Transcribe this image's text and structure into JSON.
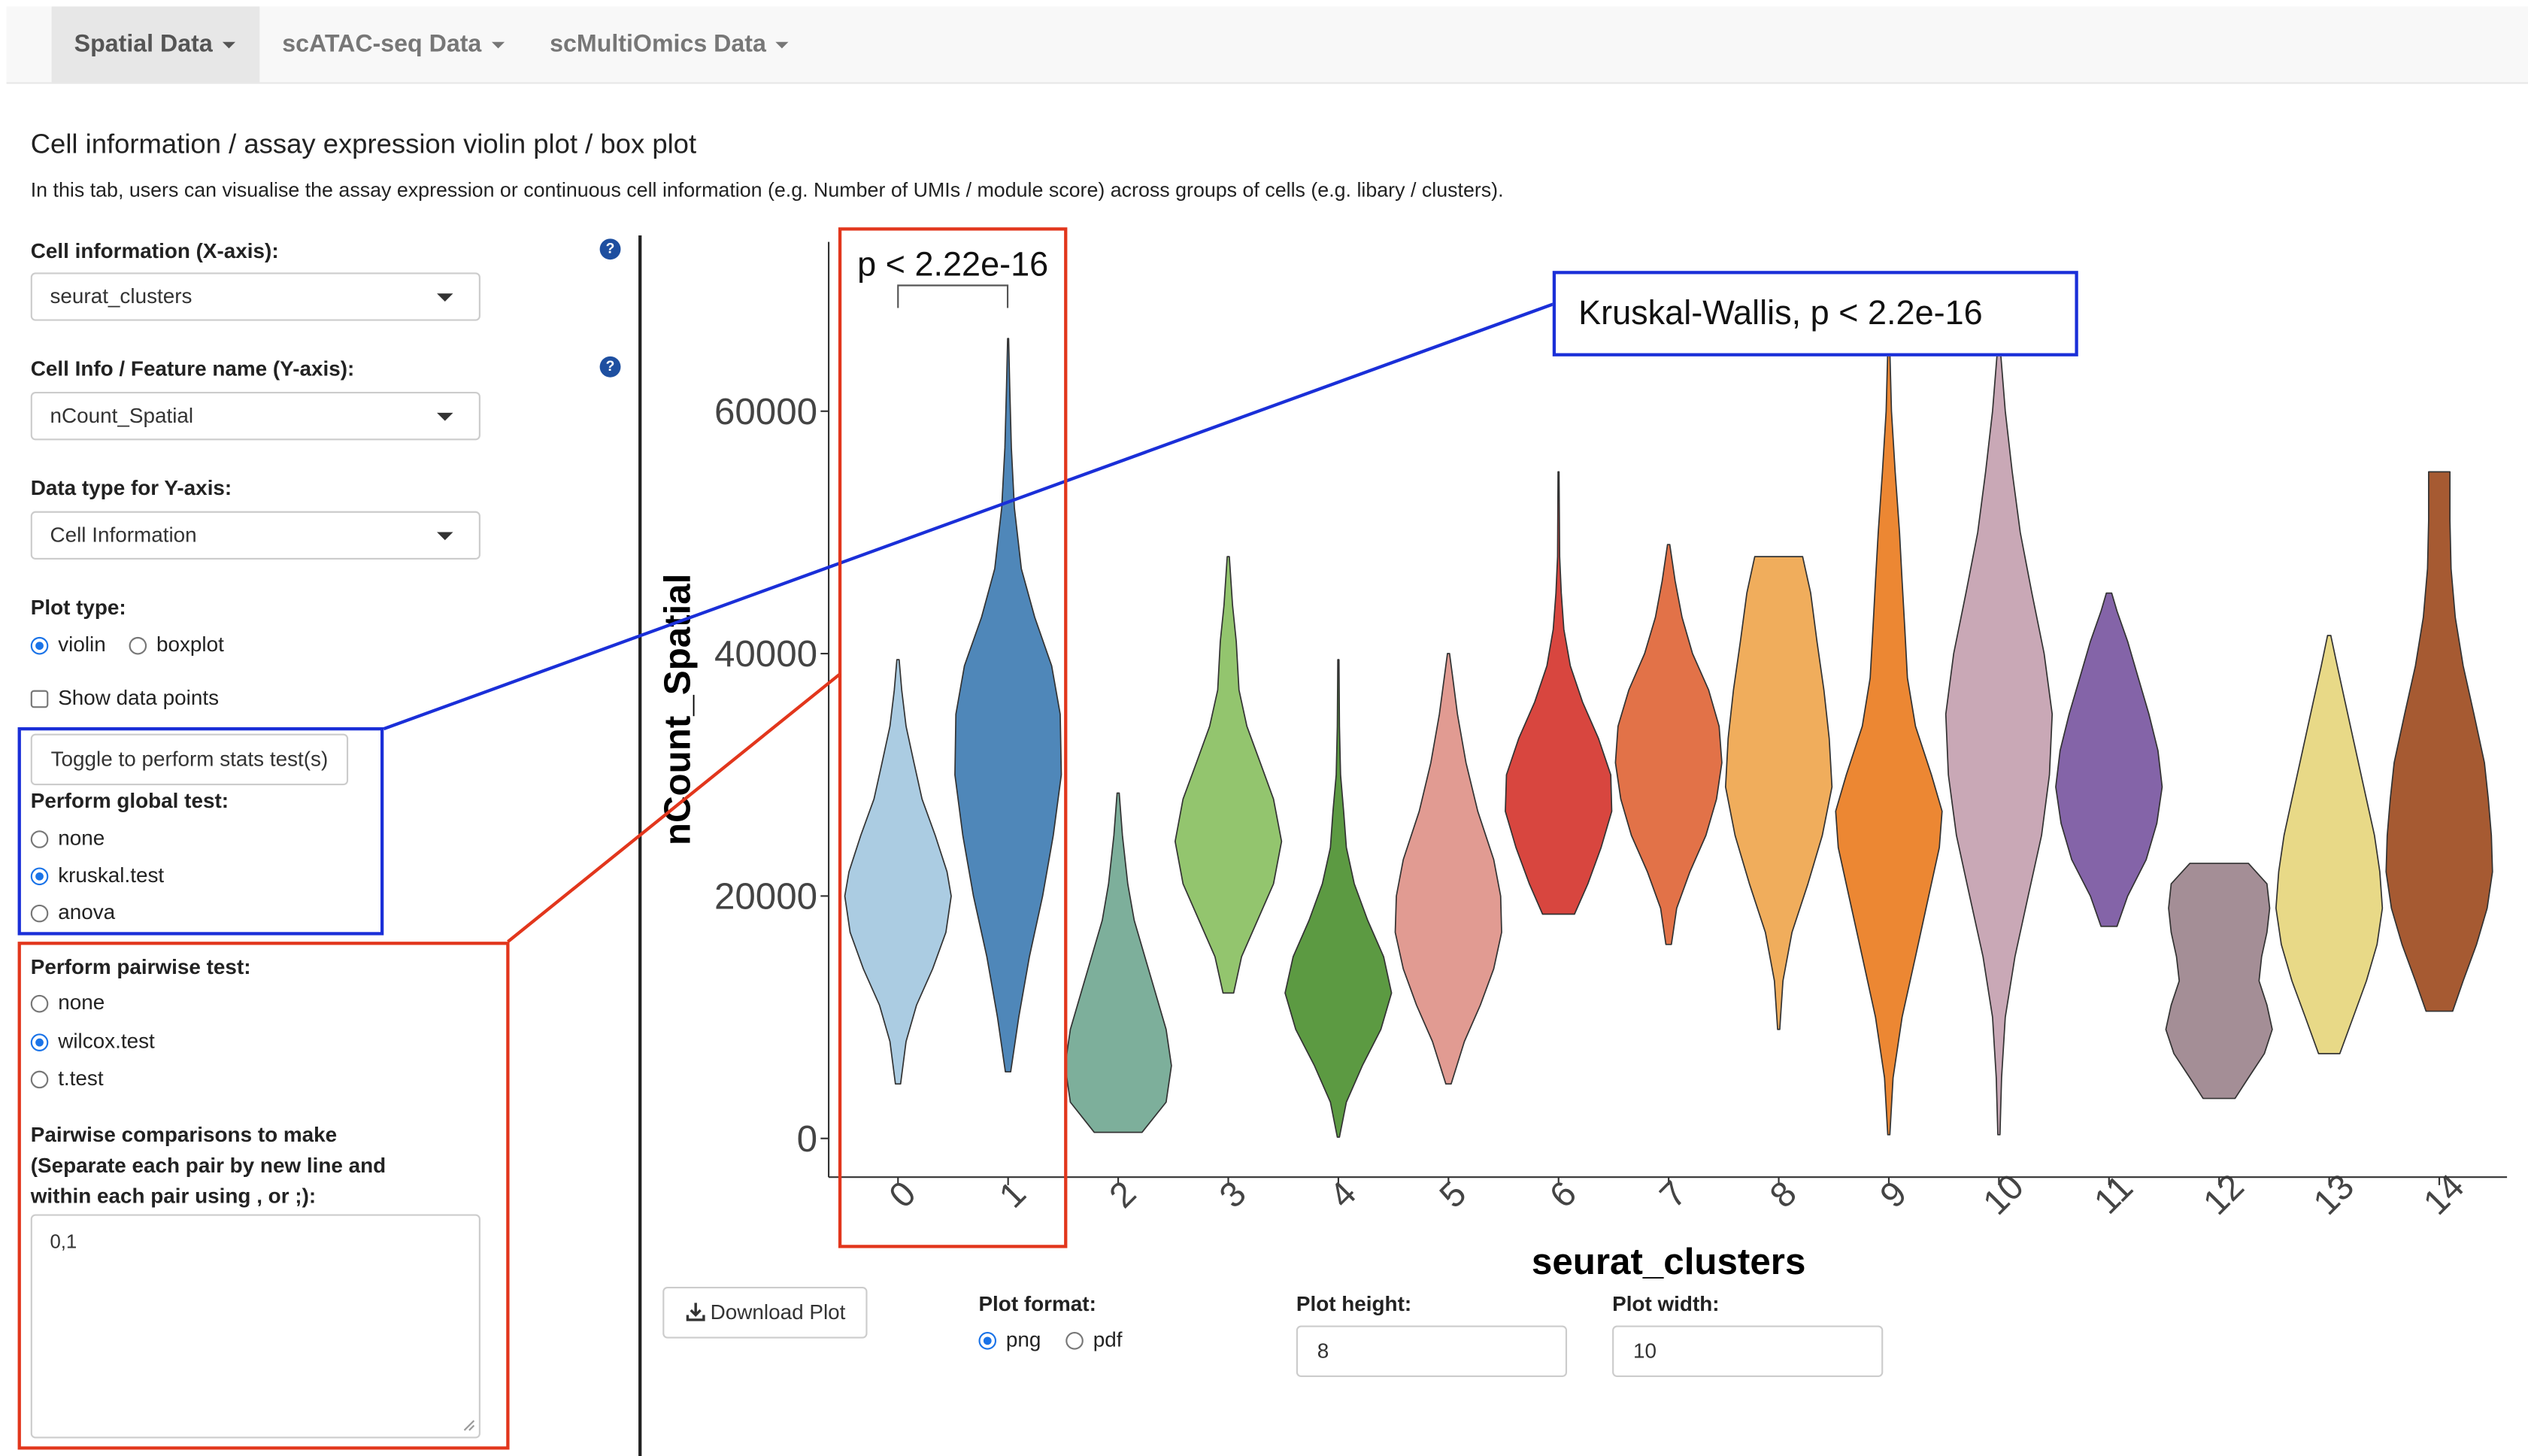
{
  "nav": {
    "tabs": [
      {
        "label": "Spatial Data",
        "active": true
      },
      {
        "label": "scATAC-seq Data",
        "active": false
      },
      {
        "label": "scMultiOmics Data",
        "active": false
      }
    ]
  },
  "header": {
    "title": "Cell information / assay expression violin plot / box plot",
    "description": "In this tab, users can visualise the assay expression or continuous cell information (e.g. Number of UMIs / module score) across groups of cells (e.g. libary / clusters)."
  },
  "controls": {
    "x_axis": {
      "label": "Cell information (X-axis):",
      "value": "seurat_clusters"
    },
    "y_axis": {
      "label": "Cell Info / Feature name (Y-axis):",
      "value": "nCount_Spatial"
    },
    "data_type": {
      "label": "Data type for Y-axis:",
      "value": "Cell Information"
    },
    "plot_type": {
      "label": "Plot type:",
      "options": [
        "violin",
        "boxplot"
      ],
      "selected": "violin"
    },
    "show_points": {
      "label": "Show data points",
      "checked": false
    },
    "stats_toggle": {
      "label": "Toggle to perform stats test(s)"
    },
    "global_test": {
      "label": "Perform global test:",
      "options": [
        "none",
        "kruskal.test",
        "anova"
      ],
      "selected": "kruskal.test"
    },
    "pairwise_test": {
      "label": "Perform pairwise test:",
      "options": [
        "none",
        "wilcox.test",
        "t.test"
      ],
      "selected": "wilcox.test"
    },
    "comparisons": {
      "label_line1": "Pairwise comparisons to make",
      "label_line2": "(Separate each pair by new line and",
      "label_line3": "within each pair using , or ;):",
      "value": "0,1"
    }
  },
  "download": {
    "button_label": "Download Plot",
    "format": {
      "label": "Plot format:",
      "options": [
        "png",
        "pdf"
      ],
      "selected": "png"
    },
    "height": {
      "label": "Plot height:",
      "value": "8"
    },
    "width": {
      "label": "Plot width:",
      "value": "10"
    }
  },
  "icons": {
    "help": "question-circle-icon",
    "download": "download-icon"
  },
  "annotations": {
    "global_label": "Kruskal-Wallis, p < 2.2e-16",
    "pairwise_label": "p < 2.22e-16",
    "blue_color": "#1a2fd8",
    "red_color": "#e2361c"
  },
  "chart_data": {
    "type": "violin",
    "xlabel": "seurat_clusters",
    "ylabel": "nCount_Spatial",
    "ylim": [
      -3000,
      74000
    ],
    "yticks": [
      0,
      20000,
      40000,
      60000
    ],
    "ytick_labels": [
      "0",
      "20000",
      "40000",
      "60000"
    ],
    "categories": [
      "0",
      "1",
      "2",
      "3",
      "4",
      "5",
      "6",
      "7",
      "8",
      "9",
      "10",
      "11",
      "12",
      "13",
      "14"
    ],
    "colors": [
      "#abcce2",
      "#4f87b9",
      "#7daf9b",
      "#93c56e",
      "#5c9a42",
      "#e19b92",
      "#d8463f",
      "#e27248",
      "#f0ad5c",
      "#ec8733",
      "#c9a8b6",
      "#8464a8",
      "#a48e96",
      "#e8d987",
      "#a65a32"
    ],
    "series": [
      {
        "values": [
          [
            4500,
            0.05
          ],
          [
            8000,
            0.15
          ],
          [
            11000,
            0.35
          ],
          [
            14000,
            0.65
          ],
          [
            17000,
            0.9
          ],
          [
            20000,
            1
          ],
          [
            22000,
            0.92
          ],
          [
            25000,
            0.7
          ],
          [
            28000,
            0.45
          ],
          [
            31000,
            0.3
          ],
          [
            34000,
            0.15
          ],
          [
            37000,
            0.07
          ],
          [
            39500,
            0.02
          ]
        ],
        "median": 20000
      },
      {
        "values": [
          [
            5500,
            0.05
          ],
          [
            10000,
            0.2
          ],
          [
            15000,
            0.4
          ],
          [
            20000,
            0.65
          ],
          [
            25000,
            0.85
          ],
          [
            30000,
            1
          ],
          [
            35000,
            0.98
          ],
          [
            39000,
            0.82
          ],
          [
            43000,
            0.5
          ],
          [
            47000,
            0.25
          ],
          [
            52000,
            0.12
          ],
          [
            57000,
            0.06
          ],
          [
            62000,
            0.03
          ],
          [
            66000,
            0.01
          ]
        ],
        "median": 30000
      },
      {
        "values": [
          [
            500,
            0.45
          ],
          [
            3000,
            0.9
          ],
          [
            6000,
            1
          ],
          [
            9000,
            0.9
          ],
          [
            12000,
            0.7
          ],
          [
            15000,
            0.5
          ],
          [
            18000,
            0.3
          ],
          [
            21000,
            0.18
          ],
          [
            25000,
            0.08
          ],
          [
            28500,
            0.02
          ]
        ],
        "median": 8000
      },
      {
        "values": [
          [
            12000,
            0.1
          ],
          [
            15000,
            0.25
          ],
          [
            18000,
            0.55
          ],
          [
            21000,
            0.85
          ],
          [
            24500,
            1
          ],
          [
            28000,
            0.85
          ],
          [
            31000,
            0.6
          ],
          [
            34000,
            0.35
          ],
          [
            37000,
            0.2
          ],
          [
            41000,
            0.15
          ],
          [
            44000,
            0.08
          ],
          [
            48000,
            0.02
          ]
        ],
        "median": 25000
      },
      {
        "values": [
          [
            100,
            0.02
          ],
          [
            3000,
            0.15
          ],
          [
            6000,
            0.45
          ],
          [
            9000,
            0.8
          ],
          [
            12000,
            1
          ],
          [
            15000,
            0.85
          ],
          [
            18000,
            0.55
          ],
          [
            21000,
            0.3
          ],
          [
            24000,
            0.15
          ],
          [
            27000,
            0.1
          ],
          [
            30000,
            0.04
          ],
          [
            34000,
            0.02
          ],
          [
            39500,
            0.01
          ]
        ],
        "median": 12000
      },
      {
        "values": [
          [
            4500,
            0.05
          ],
          [
            8000,
            0.3
          ],
          [
            11000,
            0.6
          ],
          [
            14000,
            0.85
          ],
          [
            17000,
            1
          ],
          [
            20000,
            0.98
          ],
          [
            23000,
            0.85
          ],
          [
            27000,
            0.55
          ],
          [
            31000,
            0.33
          ],
          [
            35000,
            0.17
          ],
          [
            38000,
            0.08
          ],
          [
            40000,
            0.02
          ]
        ],
        "median": 18000
      },
      {
        "values": [
          [
            18500,
            0.3
          ],
          [
            21000,
            0.55
          ],
          [
            24000,
            0.8
          ],
          [
            27000,
            1
          ],
          [
            30000,
            0.98
          ],
          [
            33000,
            0.75
          ],
          [
            36000,
            0.45
          ],
          [
            39000,
            0.22
          ],
          [
            42000,
            0.1
          ],
          [
            45000,
            0.05
          ],
          [
            48000,
            0.02
          ],
          [
            55000,
            0.01
          ]
        ],
        "median": 28000
      },
      {
        "values": [
          [
            16000,
            0.05
          ],
          [
            19000,
            0.15
          ],
          [
            22000,
            0.4
          ],
          [
            25000,
            0.7
          ],
          [
            28000,
            0.9
          ],
          [
            31000,
            1
          ],
          [
            34000,
            0.95
          ],
          [
            37000,
            0.75
          ],
          [
            40000,
            0.45
          ],
          [
            43000,
            0.25
          ],
          [
            46000,
            0.12
          ],
          [
            49000,
            0.02
          ]
        ],
        "median": 31000
      },
      {
        "values": [
          [
            9000,
            0.02
          ],
          [
            13000,
            0.08
          ],
          [
            17000,
            0.25
          ],
          [
            21000,
            0.55
          ],
          [
            25000,
            0.82
          ],
          [
            29000,
            1
          ],
          [
            33000,
            0.95
          ],
          [
            37000,
            0.85
          ],
          [
            41000,
            0.72
          ],
          [
            45000,
            0.6
          ],
          [
            48000,
            0.45
          ]
        ],
        "median": 30000
      },
      {
        "values": [
          [
            300,
            0.02
          ],
          [
            5000,
            0.08
          ],
          [
            10000,
            0.25
          ],
          [
            15000,
            0.5
          ],
          [
            20000,
            0.75
          ],
          [
            24000,
            0.95
          ],
          [
            27000,
            1
          ],
          [
            30000,
            0.8
          ],
          [
            34000,
            0.5
          ],
          [
            38000,
            0.35
          ],
          [
            42000,
            0.3
          ],
          [
            46000,
            0.25
          ],
          [
            50000,
            0.2
          ],
          [
            55000,
            0.12
          ],
          [
            60000,
            0.05
          ],
          [
            65000,
            0.02
          ],
          [
            67000,
            0.01
          ]
        ],
        "median": 27000
      },
      {
        "values": [
          [
            300,
            0.02
          ],
          [
            5000,
            0.05
          ],
          [
            10000,
            0.12
          ],
          [
            15000,
            0.3
          ],
          [
            20000,
            0.55
          ],
          [
            25000,
            0.8
          ],
          [
            30000,
            0.95
          ],
          [
            35000,
            1
          ],
          [
            40000,
            0.85
          ],
          [
            45000,
            0.62
          ],
          [
            50000,
            0.4
          ],
          [
            55000,
            0.25
          ],
          [
            60000,
            0.12
          ],
          [
            65500,
            0.02
          ]
        ],
        "median": 32000
      },
      {
        "values": [
          [
            17500,
            0.15
          ],
          [
            20000,
            0.35
          ],
          [
            23000,
            0.7
          ],
          [
            26000,
            0.9
          ],
          [
            29000,
            1
          ],
          [
            32000,
            0.92
          ],
          [
            35000,
            0.75
          ],
          [
            38000,
            0.55
          ],
          [
            41000,
            0.35
          ],
          [
            43500,
            0.15
          ],
          [
            45000,
            0.05
          ]
        ],
        "median": 28000
      },
      {
        "values": [
          [
            3300,
            0.3
          ],
          [
            5000,
            0.55
          ],
          [
            7000,
            0.85
          ],
          [
            9000,
            1
          ],
          [
            11000,
            0.9
          ],
          [
            13000,
            0.75
          ],
          [
            15000,
            0.8
          ],
          [
            17000,
            0.9
          ],
          [
            19000,
            0.95
          ],
          [
            21000,
            0.9
          ],
          [
            22700,
            0.55
          ]
        ],
        "median": 12000
      },
      {
        "values": [
          [
            7000,
            0.2
          ],
          [
            10000,
            0.45
          ],
          [
            13000,
            0.7
          ],
          [
            16000,
            0.9
          ],
          [
            19000,
            1
          ],
          [
            22000,
            0.95
          ],
          [
            25000,
            0.85
          ],
          [
            28000,
            0.7
          ],
          [
            32000,
            0.5
          ],
          [
            36000,
            0.3
          ],
          [
            39000,
            0.15
          ],
          [
            41500,
            0.03
          ]
        ],
        "median": 20000
      },
      {
        "values": [
          [
            10500,
            0.25
          ],
          [
            13000,
            0.45
          ],
          [
            16000,
            0.7
          ],
          [
            19000,
            0.9
          ],
          [
            22000,
            1
          ],
          [
            25000,
            0.98
          ],
          [
            28000,
            0.92
          ],
          [
            31000,
            0.85
          ],
          [
            35000,
            0.65
          ],
          [
            39000,
            0.45
          ],
          [
            43000,
            0.3
          ],
          [
            47000,
            0.22
          ],
          [
            51000,
            0.2
          ],
          [
            55000,
            0.2
          ]
        ],
        "median": 25000
      }
    ],
    "comparisons": [
      [
        "0",
        "1"
      ]
    ]
  }
}
